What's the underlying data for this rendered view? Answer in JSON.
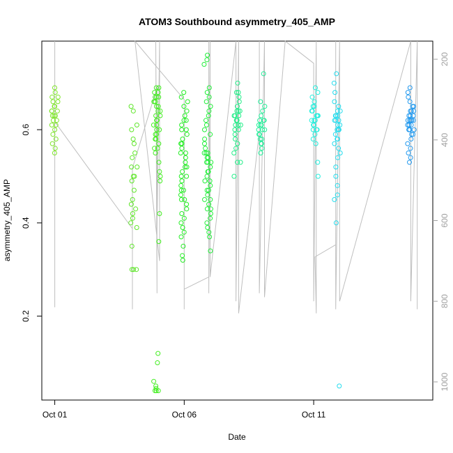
{
  "chart_data": {
    "type": "scatter",
    "title": "ATOM3 Southbound asymmetry_405_AMP",
    "xlabel": "Date",
    "ylabel": "asymmetry_405_AMP",
    "x_ticks": [
      {
        "day": 1,
        "label": "Oct 01"
      },
      {
        "day": 6,
        "label": "Oct 06"
      },
      {
        "day": 11,
        "label": "Oct 11"
      }
    ],
    "xlim_days": [
      0.5,
      15.6
    ],
    "ylim": [
      0.02,
      0.79
    ],
    "y_ticks": [
      0.2,
      0.4,
      0.6
    ],
    "y2_ticks": [
      200,
      400,
      600,
      800,
      1000
    ],
    "y2lim": [
      1045,
      155
    ],
    "y2_reversed": true,
    "grid": false,
    "legend": "none",
    "colors": {
      "depth_line": "#bfbfbf",
      "frame": "#000000",
      "right_axis": "#a0a0a0"
    },
    "clusters": [
      {
        "day": 1.0,
        "color": "#7fe62a",
        "values": [
          0.69,
          0.68,
          0.67,
          0.66,
          0.65,
          0.65,
          0.64,
          0.64,
          0.63,
          0.63,
          0.62,
          0.62,
          0.61,
          0.61,
          0.6,
          0.59,
          0.58,
          0.57,
          0.56,
          0.55,
          0.63,
          0.64,
          0.66,
          0.67
        ]
      },
      {
        "day": 4.05,
        "color": "#5fe62a",
        "values": [
          0.65,
          0.64,
          0.61,
          0.6,
          0.58,
          0.57,
          0.55,
          0.54,
          0.52,
          0.52,
          0.5,
          0.49,
          0.47,
          0.45,
          0.44,
          0.43,
          0.42,
          0.41,
          0.4,
          0.39,
          0.3,
          0.3,
          0.3,
          0.35,
          0.5
        ]
      },
      {
        "day": 4.95,
        "color": "#44ee22",
        "values": [
          0.69,
          0.69,
          0.68,
          0.68,
          0.67,
          0.67,
          0.66,
          0.66,
          0.65,
          0.65,
          0.64,
          0.64,
          0.63,
          0.62,
          0.62,
          0.61,
          0.6,
          0.6,
          0.59,
          0.59,
          0.58,
          0.57,
          0.56,
          0.55,
          0.53,
          0.51,
          0.5,
          0.49,
          0.42,
          0.36,
          0.12,
          0.1,
          0.06,
          0.05,
          0.045,
          0.04,
          0.04,
          0.04,
          0.67,
          0.66,
          0.63,
          0.61,
          0.58,
          0.56
        ]
      },
      {
        "day": 6.0,
        "color": "#22ee22",
        "values": [
          0.68,
          0.67,
          0.66,
          0.65,
          0.64,
          0.63,
          0.62,
          0.61,
          0.6,
          0.59,
          0.58,
          0.57,
          0.56,
          0.55,
          0.54,
          0.53,
          0.52,
          0.51,
          0.5,
          0.49,
          0.48,
          0.47,
          0.46,
          0.45,
          0.44,
          0.43,
          0.42,
          0.41,
          0.4,
          0.39,
          0.38,
          0.37,
          0.35,
          0.33,
          0.32,
          0.62,
          0.6,
          0.57,
          0.55,
          0.52,
          0.5,
          0.47,
          0.45
        ]
      },
      {
        "day": 6.9,
        "color": "#22ee3a",
        "values": [
          0.76,
          0.75,
          0.74,
          0.69,
          0.68,
          0.67,
          0.66,
          0.65,
          0.64,
          0.63,
          0.62,
          0.61,
          0.6,
          0.59,
          0.58,
          0.57,
          0.56,
          0.55,
          0.55,
          0.54,
          0.54,
          0.53,
          0.53,
          0.52,
          0.51,
          0.5,
          0.49,
          0.48,
          0.47,
          0.46,
          0.45,
          0.44,
          0.43,
          0.42,
          0.41,
          0.4,
          0.39,
          0.38,
          0.37,
          0.34,
          0.55,
          0.53,
          0.51,
          0.49,
          0.47,
          0.45,
          0.43
        ]
      },
      {
        "day": 8.05,
        "color": "#22ee88",
        "values": [
          0.7,
          0.68,
          0.68,
          0.67,
          0.66,
          0.65,
          0.64,
          0.64,
          0.63,
          0.63,
          0.62,
          0.62,
          0.61,
          0.61,
          0.6,
          0.6,
          0.59,
          0.58,
          0.57,
          0.56,
          0.55,
          0.53,
          0.53,
          0.5,
          0.62,
          0.63,
          0.64,
          0.61
        ]
      },
      {
        "day": 9.0,
        "color": "#22ee99",
        "values": [
          0.72,
          0.66,
          0.65,
          0.64,
          0.63,
          0.62,
          0.62,
          0.61,
          0.61,
          0.6,
          0.6,
          0.59,
          0.59,
          0.58,
          0.58,
          0.57,
          0.56,
          0.55,
          0.6,
          0.61,
          0.62,
          0.57
        ]
      },
      {
        "day": 11.05,
        "color": "#22eedd",
        "values": [
          0.69,
          0.68,
          0.67,
          0.66,
          0.65,
          0.65,
          0.64,
          0.64,
          0.63,
          0.63,
          0.62,
          0.62,
          0.61,
          0.61,
          0.6,
          0.6,
          0.59,
          0.58,
          0.57,
          0.53,
          0.5,
          0.62,
          0.63,
          0.6
        ]
      },
      {
        "day": 11.9,
        "color": "#22ddee",
        "values": [
          0.72,
          0.7,
          0.68,
          0.66,
          0.65,
          0.64,
          0.64,
          0.63,
          0.63,
          0.62,
          0.62,
          0.61,
          0.61,
          0.6,
          0.6,
          0.59,
          0.58,
          0.57,
          0.56,
          0.55,
          0.54,
          0.52,
          0.5,
          0.48,
          0.46,
          0.45,
          0.4,
          0.05,
          0.62,
          0.6,
          0.58,
          0.63
        ]
      },
      {
        "day": 14.75,
        "color": "#2299ee",
        "values": [
          0.69,
          0.68,
          0.67,
          0.66,
          0.65,
          0.65,
          0.64,
          0.64,
          0.63,
          0.63,
          0.62,
          0.62,
          0.62,
          0.61,
          0.61,
          0.61,
          0.6,
          0.6,
          0.6,
          0.59,
          0.59,
          0.58,
          0.57,
          0.56,
          0.55,
          0.54,
          0.53,
          0.63,
          0.62,
          0.61,
          0.6,
          0.64,
          0.62
        ]
      }
    ],
    "depth_trace": [
      {
        "day": 1.0,
        "depth": 155
      },
      {
        "day": 1.0,
        "depth": 815
      },
      {
        "day": 1.0,
        "depth": 355
      },
      {
        "day": 4.0,
        "depth": 620
      },
      {
        "day": 4.0,
        "depth": 820
      },
      {
        "day": 4.0,
        "depth": 470
      },
      {
        "day": 4.95,
        "depth": 270
      },
      {
        "day": 4.95,
        "depth": 780
      },
      {
        "day": 4.9,
        "depth": 155
      },
      {
        "day": 4.95,
        "depth": 620
      },
      {
        "day": 5.05,
        "depth": 155
      },
      {
        "day": 5.05,
        "depth": 700
      },
      {
        "day": 4.1,
        "depth": 155
      },
      {
        "day": 6.0,
        "depth": 300
      },
      {
        "day": 6.0,
        "depth": 820
      },
      {
        "day": 6.0,
        "depth": 770
      },
      {
        "day": 6.95,
        "depth": 740
      },
      {
        "day": 6.95,
        "depth": 155
      },
      {
        "day": 6.95,
        "depth": 780
      },
      {
        "day": 7.0,
        "depth": 155
      },
      {
        "day": 7.0,
        "depth": 740
      },
      {
        "day": 8.0,
        "depth": 155
      },
      {
        "day": 8.0,
        "depth": 800
      },
      {
        "day": 8.1,
        "depth": 155
      },
      {
        "day": 8.1,
        "depth": 830
      },
      {
        "day": 8.9,
        "depth": 380
      },
      {
        "day": 8.9,
        "depth": 155
      },
      {
        "day": 8.9,
        "depth": 780
      },
      {
        "day": 9.1,
        "depth": 155
      },
      {
        "day": 9.1,
        "depth": 790
      },
      {
        "day": 9.9,
        "depth": 155
      },
      {
        "day": 11.0,
        "depth": 210
      },
      {
        "day": 11.0,
        "depth": 800
      },
      {
        "day": 11.1,
        "depth": 155
      },
      {
        "day": 11.1,
        "depth": 830
      },
      {
        "day": 11.05,
        "depth": 690
      },
      {
        "day": 11.85,
        "depth": 660
      },
      {
        "day": 11.85,
        "depth": 155
      },
      {
        "day": 11.85,
        "depth": 820
      },
      {
        "day": 12.0,
        "depth": 155
      },
      {
        "day": 12.0,
        "depth": 800
      },
      {
        "day": 14.75,
        "depth": 155
      },
      {
        "day": 14.75,
        "depth": 800
      },
      {
        "day": 15.0,
        "depth": 155
      },
      {
        "day": 15.0,
        "depth": 820
      }
    ]
  }
}
